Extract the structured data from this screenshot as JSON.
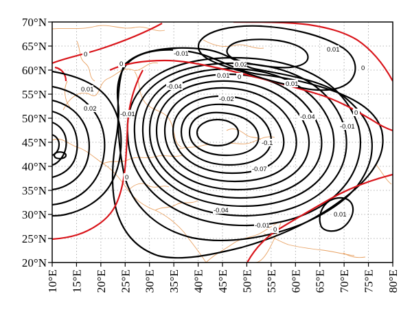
{
  "map": {
    "lon_range": [
      10,
      80
    ],
    "lat_range": [
      20,
      70
    ],
    "lon_ticks": [
      "10°E",
      "15°E",
      "20°E",
      "25°E",
      "30°E",
      "35°E",
      "40°E",
      "45°E",
      "50°E",
      "55°E",
      "60°E",
      "65°E",
      "70°E",
      "75°E",
      "80°E"
    ],
    "lat_ticks": [
      "20°N",
      "25°N",
      "30°N",
      "35°N",
      "40°N",
      "45°N",
      "50°N",
      "55°N",
      "60°N",
      "65°N",
      "70°N"
    ],
    "grid": true,
    "colors": {
      "positive_negative_contours": "#000000",
      "zero_contour": "#d9141a",
      "coastline": "#e8a060",
      "grid": "#9a9a9a"
    },
    "contour_labels": [
      "0",
      "0",
      "0",
      "0",
      "0",
      "0",
      "0",
      "0.01",
      "0.01",
      "0.01",
      "0.01",
      "0.01",
      "0.02",
      "0.02",
      "-0.01",
      "-0.01",
      "-0.01",
      "-0.01",
      "-0.02",
      "-0.04",
      "-0.04",
      "-0.04",
      "-0.07",
      "-0.1"
    ]
  }
}
